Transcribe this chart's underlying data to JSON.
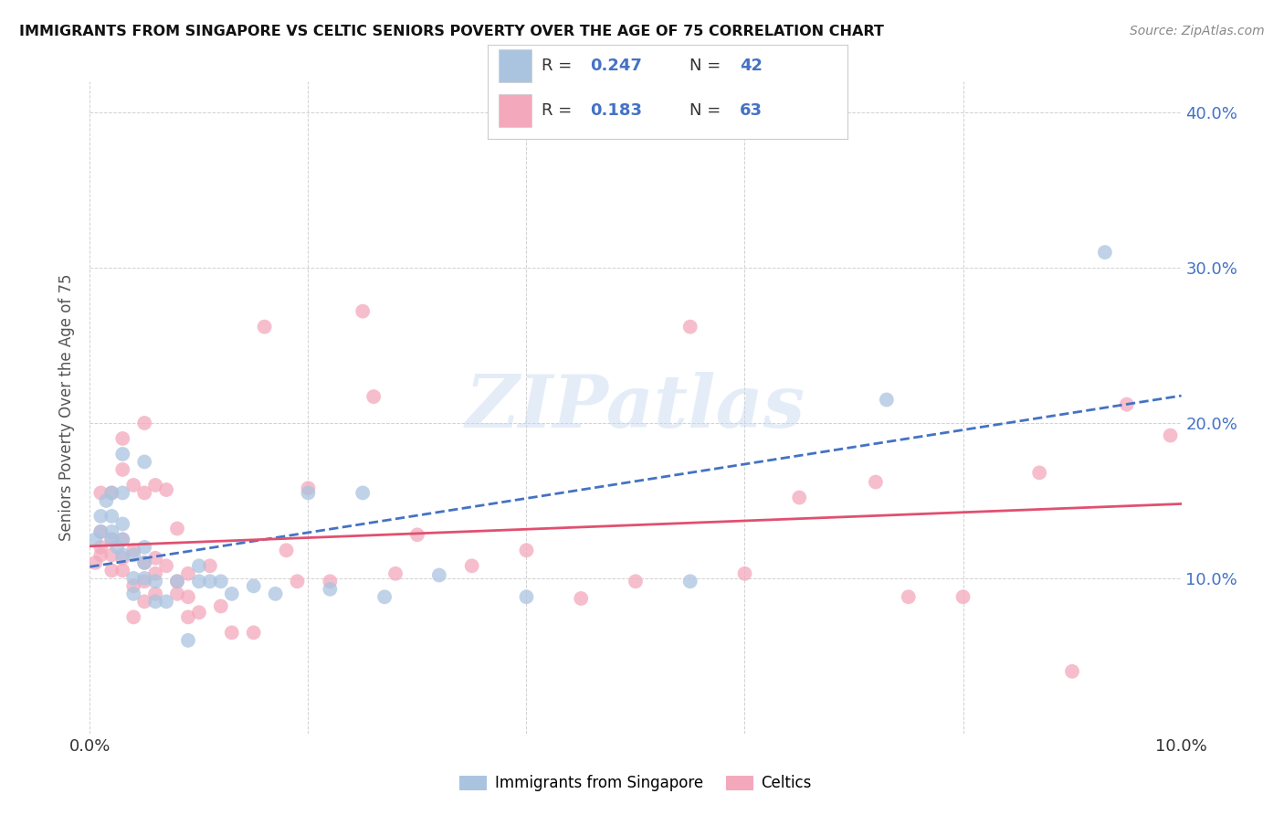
{
  "title": "IMMIGRANTS FROM SINGAPORE VS CELTIC SENIORS POVERTY OVER THE AGE OF 75 CORRELATION CHART",
  "source": "Source: ZipAtlas.com",
  "ylabel": "Seniors Poverty Over the Age of 75",
  "xlim": [
    0.0,
    0.1
  ],
  "ylim": [
    0.0,
    0.42
  ],
  "r_singapore": 0.247,
  "n_singapore": 42,
  "r_celtics": 0.183,
  "n_celtics": 63,
  "singapore_color": "#aac4e0",
  "celtics_color": "#f4a8bc",
  "singapore_line_color": "#4472c4",
  "celtics_line_color": "#e05070",
  "label_color": "#4472c4",
  "background_color": "#ffffff",
  "grid_color": "#cccccc",
  "watermark": "ZIPatlas",
  "singapore_x": [
    0.0005,
    0.001,
    0.001,
    0.0015,
    0.002,
    0.002,
    0.002,
    0.002,
    0.0025,
    0.003,
    0.003,
    0.003,
    0.003,
    0.003,
    0.004,
    0.004,
    0.004,
    0.005,
    0.005,
    0.005,
    0.005,
    0.006,
    0.006,
    0.007,
    0.008,
    0.009,
    0.01,
    0.01,
    0.011,
    0.012,
    0.013,
    0.015,
    0.017,
    0.02,
    0.022,
    0.025,
    0.027,
    0.032,
    0.04,
    0.055,
    0.073,
    0.093
  ],
  "singapore_y": [
    0.125,
    0.13,
    0.14,
    0.15,
    0.125,
    0.13,
    0.14,
    0.155,
    0.12,
    0.115,
    0.125,
    0.135,
    0.155,
    0.18,
    0.09,
    0.1,
    0.115,
    0.1,
    0.11,
    0.12,
    0.175,
    0.085,
    0.098,
    0.085,
    0.098,
    0.06,
    0.098,
    0.108,
    0.098,
    0.098,
    0.09,
    0.095,
    0.09,
    0.155,
    0.093,
    0.155,
    0.088,
    0.102,
    0.088,
    0.098,
    0.215,
    0.31
  ],
  "celtics_x": [
    0.0005,
    0.001,
    0.001,
    0.001,
    0.001,
    0.002,
    0.002,
    0.002,
    0.002,
    0.003,
    0.003,
    0.003,
    0.003,
    0.003,
    0.004,
    0.004,
    0.004,
    0.004,
    0.005,
    0.005,
    0.005,
    0.005,
    0.005,
    0.006,
    0.006,
    0.006,
    0.006,
    0.007,
    0.007,
    0.008,
    0.008,
    0.008,
    0.009,
    0.009,
    0.009,
    0.01,
    0.011,
    0.012,
    0.013,
    0.015,
    0.016,
    0.018,
    0.019,
    0.02,
    0.022,
    0.025,
    0.026,
    0.028,
    0.03,
    0.035,
    0.04,
    0.045,
    0.05,
    0.055,
    0.06,
    0.065,
    0.072,
    0.075,
    0.08,
    0.087,
    0.09,
    0.095,
    0.099
  ],
  "celtics_y": [
    0.11,
    0.115,
    0.12,
    0.13,
    0.155,
    0.105,
    0.115,
    0.125,
    0.155,
    0.105,
    0.113,
    0.125,
    0.17,
    0.19,
    0.075,
    0.095,
    0.118,
    0.16,
    0.085,
    0.098,
    0.11,
    0.155,
    0.2,
    0.09,
    0.103,
    0.113,
    0.16,
    0.108,
    0.157,
    0.09,
    0.098,
    0.132,
    0.075,
    0.088,
    0.103,
    0.078,
    0.108,
    0.082,
    0.065,
    0.065,
    0.262,
    0.118,
    0.098,
    0.158,
    0.098,
    0.272,
    0.217,
    0.103,
    0.128,
    0.108,
    0.118,
    0.087,
    0.098,
    0.262,
    0.103,
    0.152,
    0.162,
    0.088,
    0.088,
    0.168,
    0.04,
    0.212,
    0.192
  ]
}
